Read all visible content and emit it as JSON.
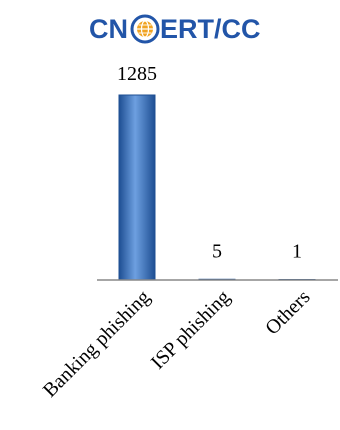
{
  "logo": {
    "text_left": "CN",
    "text_right": "ERT/CC",
    "color": "#2255a8",
    "globe_color": "#f0a321"
  },
  "chart_data": {
    "type": "bar",
    "categories": [
      "Banking phishing",
      "ISP phishing",
      "Others"
    ],
    "values": [
      1285,
      5,
      1
    ],
    "ylim": [
      0,
      1285
    ],
    "grid": false,
    "legend": "none",
    "bar_color": "#3d78c9",
    "bar_color_dark": "#1e4f93",
    "bar_color_light": "#6d9fe0"
  }
}
